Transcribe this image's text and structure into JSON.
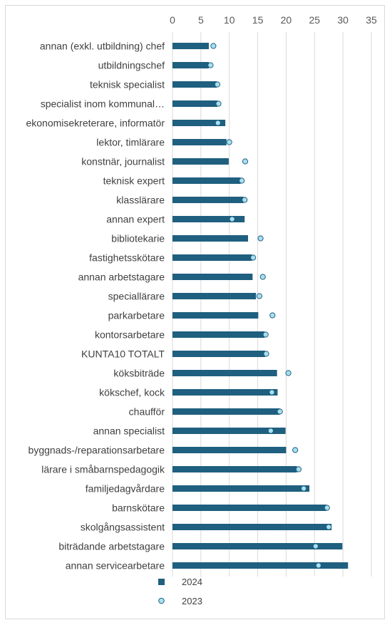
{
  "chart_data": {
    "type": "bar",
    "orientation": "horizontal",
    "xlim": [
      0,
      35
    ],
    "xticks": [
      0,
      5,
      10,
      15,
      20,
      25,
      30,
      35
    ],
    "x_axis_position": "top",
    "grid": true,
    "legend_position": "bottom-left",
    "categories": [
      "annan (exkl. utbildning) chef",
      "utbildningschef",
      "teknisk specialist",
      "specialist inom kommunal…",
      "ekonomisekreterare, informatör",
      "lektor, timlärare",
      "konstnär, journalist",
      "teknisk expert",
      "klasslärare",
      "annan expert",
      "bibliotekarie",
      "fastighetsskötare",
      "annan arbetstagare",
      "speciallärare",
      "parkarbetare",
      "kontorsarbetare",
      "KUNTA10 TOTALT",
      "köksbiträde",
      "kökschef, kock",
      "chaufför",
      "annan specialist",
      "byggnads-/reparationsarbetare",
      "lärare i småbarnspedagogik",
      "familjedagvårdare",
      "barnskötare",
      "skolgångsassistent",
      "biträdande arbetstagare",
      "annan servicearbetare"
    ],
    "series": [
      {
        "name": "2024",
        "mark": "bar",
        "color": "#1f5f7f",
        "values": [
          6.4,
          6.4,
          7.8,
          7.9,
          9.3,
          9.5,
          9.9,
          12.0,
          12.5,
          12.7,
          13.3,
          14.0,
          14.1,
          14.7,
          15.1,
          16.2,
          16.3,
          18.4,
          18.5,
          18.9,
          19.9,
          20.0,
          21.9,
          24.1,
          27.1,
          28.0,
          29.9,
          30.9
        ]
      },
      {
        "name": "2023",
        "mark": "circle",
        "color": "#a8dff0",
        "stroke": "#1f5f7f",
        "values": [
          7.2,
          6.7,
          7.9,
          8.1,
          8.0,
          10.0,
          12.8,
          12.2,
          12.7,
          10.5,
          15.5,
          14.2,
          15.9,
          15.3,
          17.6,
          16.4,
          16.5,
          20.4,
          17.5,
          18.9,
          17.3,
          21.6,
          22.2,
          23.1,
          27.2,
          27.5,
          25.2,
          25.7
        ]
      }
    ]
  }
}
